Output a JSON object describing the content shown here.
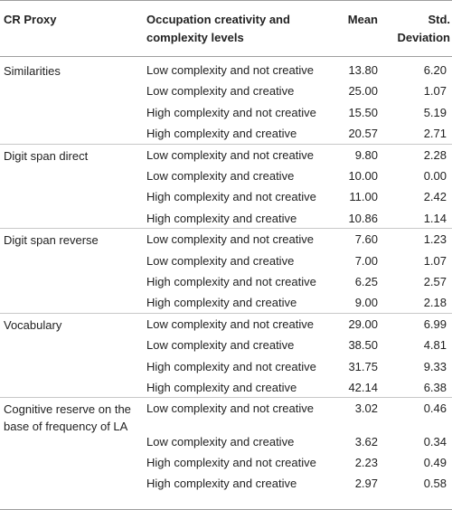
{
  "header": {
    "proxy": "CR Proxy",
    "occupation": "Occupation creativity and complexity levels",
    "mean": "Mean",
    "sd": "Std. Deviation"
  },
  "groups": [
    {
      "proxy": "Similarities",
      "rows": [
        {
          "level": "Low complexity and not creative",
          "mean": "13.80",
          "sd": "6.20"
        },
        {
          "level": "Low complexity and creative",
          "mean": "25.00",
          "sd": "1.07"
        },
        {
          "level": "High complexity and not creative",
          "mean": "15.50",
          "sd": "5.19"
        },
        {
          "level": "High complexity and creative",
          "mean": "20.57",
          "sd": "2.71"
        }
      ]
    },
    {
      "proxy": "Digit span direct",
      "rows": [
        {
          "level": "Low complexity and not creative",
          "mean": "9.80",
          "sd": "2.28"
        },
        {
          "level": "Low complexity and creative",
          "mean": "10.00",
          "sd": "0.00"
        },
        {
          "level": "High complexity and not creative",
          "mean": "11.00",
          "sd": "2.42"
        },
        {
          "level": "High complexity and creative",
          "mean": "10.86",
          "sd": "1.14"
        }
      ]
    },
    {
      "proxy": "Digit span reverse",
      "rows": [
        {
          "level": "Low complexity and not creative",
          "mean": "7.60",
          "sd": "1.23"
        },
        {
          "level": "Low complexity and creative",
          "mean": "7.00",
          "sd": "1.07"
        },
        {
          "level": "High complexity and not creative",
          "mean": "6.25",
          "sd": "2.57"
        },
        {
          "level": "High complexity and creative",
          "mean": "9.00",
          "sd": "2.18"
        }
      ]
    },
    {
      "proxy": "Vocabulary",
      "rows": [
        {
          "level": "Low complexity and not creative",
          "mean": "29.00",
          "sd": "6.99"
        },
        {
          "level": "Low complexity and creative",
          "mean": "38.50",
          "sd": "4.81"
        },
        {
          "level": "High complexity and not creative",
          "mean": "31.75",
          "sd": "9.33"
        },
        {
          "level": "High complexity and creative",
          "mean": "42.14",
          "sd": "6.38"
        }
      ]
    },
    {
      "proxy": "Cognitive reserve on the base of frequency of LA",
      "rows": [
        {
          "level": "Low complexity and not creative",
          "mean": "3.02",
          "sd": "0.46"
        },
        {
          "level": "Low complexity and creative",
          "mean": "3.62",
          "sd": "0.34"
        },
        {
          "level": "High complexity and not creative",
          "mean": "2.23",
          "sd": "0.49"
        },
        {
          "level": "High complexity and creative",
          "mean": "2.97",
          "sd": "0.58"
        }
      ]
    }
  ]
}
